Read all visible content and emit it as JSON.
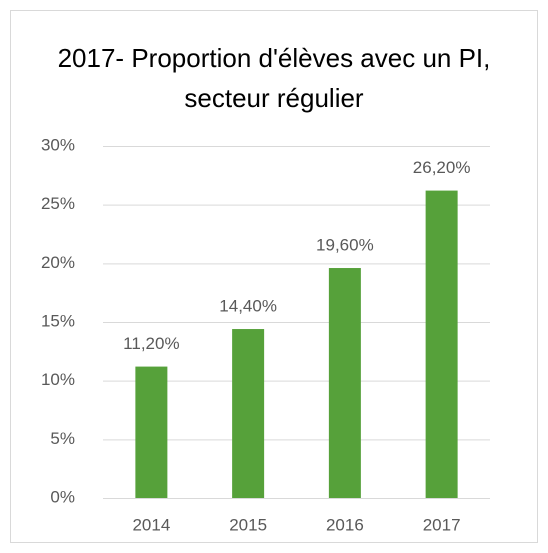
{
  "chart_data": {
    "type": "bar",
    "title": "2017- Proportion d'élèves avec un PI, secteur régulier",
    "categories": [
      "2014",
      "2015",
      "2016",
      "2017"
    ],
    "values": [
      11.2,
      14.4,
      19.6,
      26.2
    ],
    "value_labels": [
      "11,20%",
      "14,40%",
      "19,60%",
      "26,20%"
    ],
    "color": "#56a13a",
    "ylim": [
      0,
      30
    ],
    "yticks": [
      {
        "value": 0,
        "label": "0%"
      },
      {
        "value": 5,
        "label": "5%"
      },
      {
        "value": 10,
        "label": "10%"
      },
      {
        "value": 15,
        "label": "15%"
      },
      {
        "value": 20,
        "label": "20%"
      },
      {
        "value": 25,
        "label": "25%"
      },
      {
        "value": 30,
        "label": "30%"
      }
    ],
    "grid": true
  }
}
